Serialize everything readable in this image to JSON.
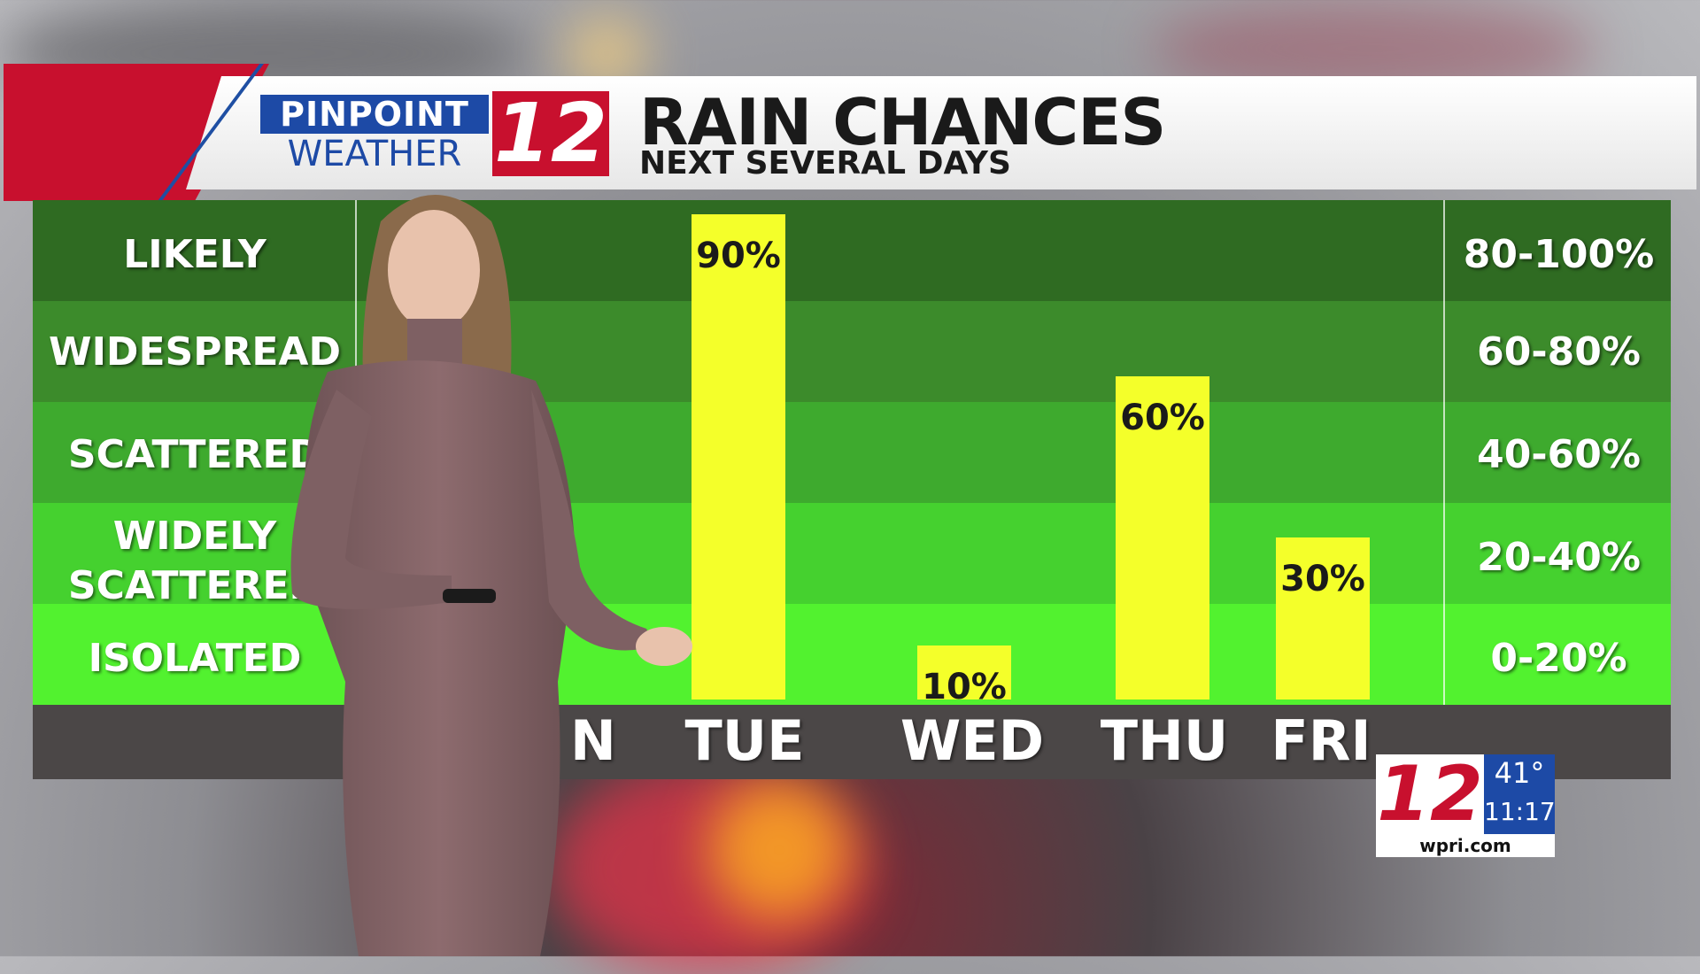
{
  "header": {
    "logo_top": "PINPOINT",
    "logo_bottom": "WEATHER",
    "logo_number": "12",
    "title": "RAIN CHANCES",
    "subtitle": "NEXT SEVERAL DAYS"
  },
  "categories_left": [
    "LIKELY",
    "WIDESPREAD",
    "SCATTERED",
    "WIDELY SCATTERED",
    "ISOLATED"
  ],
  "categories_right": [
    "80-100%",
    "60-80%",
    "40-60%",
    "20-40%",
    "0-20%"
  ],
  "colors": {
    "bands": [
      "#2f6b22",
      "#3c8b2b",
      "#3eaa2e",
      "#45d12f",
      "#52f22f"
    ],
    "bar": "#f4ff2a",
    "brand_red": "#c8102e",
    "brand_blue": "#1d4aa6"
  },
  "chart_data": {
    "type": "bar",
    "categories": [
      "MON",
      "TUE",
      "WED",
      "THU",
      "FRI"
    ],
    "visible_day_labels": [
      "N",
      "TUE",
      "WED",
      "THU",
      "FRI"
    ],
    "values": [
      null,
      90,
      10,
      60,
      30
    ],
    "value_labels": [
      "",
      "90%",
      "10%",
      "60%",
      "30%"
    ],
    "ylim": [
      0,
      100
    ],
    "bands": [
      "0-20%",
      "20-40%",
      "40-60%",
      "60-80%",
      "80-100%"
    ]
  },
  "bug": {
    "number": "12",
    "temp": "41°",
    "time": "11:17",
    "url": "wpri.com"
  }
}
